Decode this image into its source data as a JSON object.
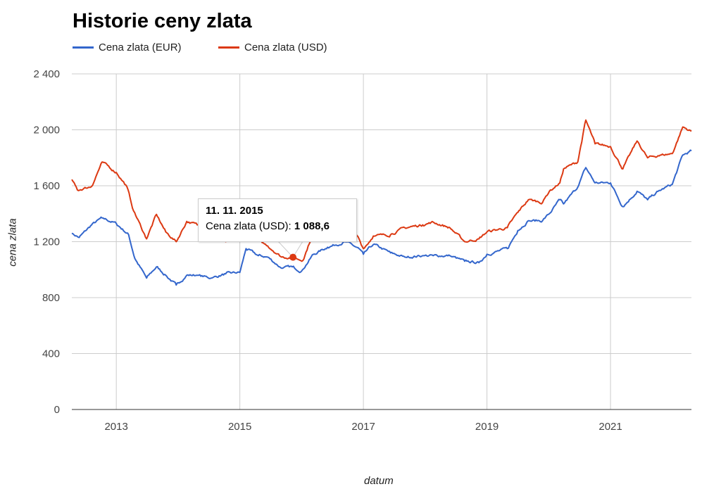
{
  "chart_data": {
    "type": "line",
    "title": "Historie ceny zlata",
    "xlabel": "datum",
    "ylabel": "cena zlata",
    "xlim": [
      2012.28,
      2022.31
    ],
    "ylim": [
      0,
      2400
    ],
    "yticks": [
      0,
      400,
      800,
      1200,
      1600,
      2000,
      2400
    ],
    "ytick_labels": [
      "0",
      "400",
      "800",
      "1 200",
      "1 600",
      "2 000",
      "2 400"
    ],
    "xticks": [
      2013,
      2015,
      2017,
      2019,
      2021
    ],
    "xtick_labels": [
      "2013",
      "2015",
      "2017",
      "2019",
      "2021"
    ],
    "grid": true,
    "legend": "top-left",
    "series": [
      {
        "name": "Cena zlata (EUR)",
        "color": "#3366cc",
        "points": [
          [
            2012.28,
            1260
          ],
          [
            2012.4,
            1230
          ],
          [
            2012.6,
            1320
          ],
          [
            2012.77,
            1370
          ],
          [
            2013.0,
            1330
          ],
          [
            2013.2,
            1250
          ],
          [
            2013.3,
            1080
          ],
          [
            2013.49,
            940
          ],
          [
            2013.65,
            1020
          ],
          [
            2013.8,
            960
          ],
          [
            2013.97,
            890
          ],
          [
            2014.14,
            960
          ],
          [
            2014.3,
            960
          ],
          [
            2014.54,
            940
          ],
          [
            2014.77,
            970
          ],
          [
            2015.0,
            980
          ],
          [
            2015.1,
            1150
          ],
          [
            2015.3,
            1100
          ],
          [
            2015.45,
            1090
          ],
          [
            2015.68,
            1010
          ],
          [
            2015.85,
            1020
          ],
          [
            2016.0,
            990
          ],
          [
            2016.19,
            1110
          ],
          [
            2016.42,
            1160
          ],
          [
            2016.7,
            1200
          ],
          [
            2016.93,
            1150
          ],
          [
            2017.0,
            1110
          ],
          [
            2017.16,
            1180
          ],
          [
            2017.44,
            1120
          ],
          [
            2017.67,
            1090
          ],
          [
            2017.96,
            1100
          ],
          [
            2018.13,
            1100
          ],
          [
            2018.4,
            1100
          ],
          [
            2018.64,
            1060
          ],
          [
            2018.87,
            1050
          ],
          [
            2019.0,
            1110
          ],
          [
            2019.33,
            1150
          ],
          [
            2019.5,
            1280
          ],
          [
            2019.67,
            1350
          ],
          [
            2019.9,
            1350
          ],
          [
            2020.01,
            1400
          ],
          [
            2020.18,
            1500
          ],
          [
            2020.24,
            1470
          ],
          [
            2020.47,
            1590
          ],
          [
            2020.6,
            1730
          ],
          [
            2020.75,
            1620
          ],
          [
            2021.0,
            1620
          ],
          [
            2021.2,
            1450
          ],
          [
            2021.43,
            1560
          ],
          [
            2021.6,
            1500
          ],
          [
            2021.77,
            1560
          ],
          [
            2022.0,
            1610
          ],
          [
            2022.17,
            1820
          ],
          [
            2022.31,
            1850
          ]
        ]
      },
      {
        "name": "Cena zlata (USD)",
        "color": "#dc3912",
        "points": [
          [
            2012.28,
            1645
          ],
          [
            2012.37,
            1570
          ],
          [
            2012.6,
            1595
          ],
          [
            2012.77,
            1770
          ],
          [
            2013.0,
            1695
          ],
          [
            2013.17,
            1595
          ],
          [
            2013.28,
            1420
          ],
          [
            2013.49,
            1220
          ],
          [
            2013.65,
            1395
          ],
          [
            2013.8,
            1270
          ],
          [
            2013.97,
            1200
          ],
          [
            2014.14,
            1345
          ],
          [
            2014.31,
            1320
          ],
          [
            2014.54,
            1320
          ],
          [
            2014.77,
            1200
          ],
          [
            2015.0,
            1220
          ],
          [
            2015.22,
            1220
          ],
          [
            2015.45,
            1170
          ],
          [
            2015.68,
            1090
          ],
          [
            2015.86,
            1088.6
          ],
          [
            2016.02,
            1065
          ],
          [
            2016.19,
            1270
          ],
          [
            2016.42,
            1290
          ],
          [
            2016.7,
            1340
          ],
          [
            2016.93,
            1220
          ],
          [
            2017.0,
            1150
          ],
          [
            2017.16,
            1240
          ],
          [
            2017.44,
            1250
          ],
          [
            2017.67,
            1300
          ],
          [
            2017.96,
            1320
          ],
          [
            2018.13,
            1340
          ],
          [
            2018.4,
            1300
          ],
          [
            2018.64,
            1200
          ],
          [
            2018.87,
            1220
          ],
          [
            2019.0,
            1270
          ],
          [
            2019.33,
            1300
          ],
          [
            2019.5,
            1410
          ],
          [
            2019.67,
            1500
          ],
          [
            2019.9,
            1480
          ],
          [
            2020.01,
            1560
          ],
          [
            2020.18,
            1620
          ],
          [
            2020.24,
            1720
          ],
          [
            2020.47,
            1770
          ],
          [
            2020.6,
            2070
          ],
          [
            2020.75,
            1900
          ],
          [
            2021.0,
            1880
          ],
          [
            2021.2,
            1720
          ],
          [
            2021.43,
            1920
          ],
          [
            2021.6,
            1800
          ],
          [
            2021.77,
            1815
          ],
          [
            2022.0,
            1830
          ],
          [
            2022.17,
            2020
          ],
          [
            2022.31,
            1990
          ]
        ]
      }
    ],
    "tooltip": {
      "date": "11. 11. 2015",
      "label": "Cena zlata (USD):",
      "value": "1 088,6",
      "point": [
        2015.86,
        1088.6
      ]
    }
  }
}
